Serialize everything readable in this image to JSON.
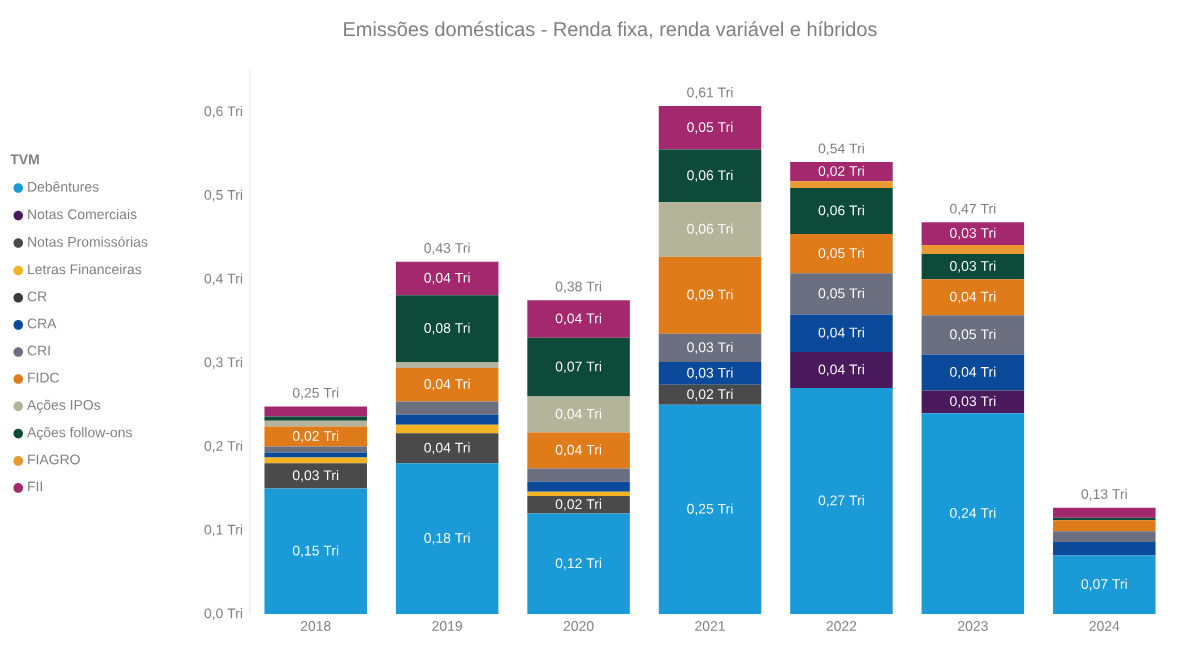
{
  "chart_data": {
    "type": "bar",
    "stacked": true,
    "title": "Emissões domésticas - Renda fixa, renda variável e híbridos",
    "legend_title": "TVM",
    "legend": "left",
    "categories": [
      "2018",
      "2019",
      "2020",
      "2021",
      "2022",
      "2023",
      "2024"
    ],
    "ylim": [
      0,
      0.65
    ],
    "yticks": [
      {
        "value": 0,
        "label": "0,0 Tri"
      },
      {
        "value": 0.1,
        "label": "0,1 Tri"
      },
      {
        "value": 0.2,
        "label": "0,2 Tri"
      },
      {
        "value": 0.3,
        "label": "0,3 Tri"
      },
      {
        "value": 0.4,
        "label": "0,4 Tri"
      },
      {
        "value": 0.5,
        "label": "0,5 Tri"
      },
      {
        "value": 0.6,
        "label": "0,6 Tri"
      }
    ],
    "totals": [
      "0,25 Tri",
      "0,43 Tri",
      "0,38 Tri",
      "0,61 Tri",
      "0,54 Tri",
      "0,47 Tri",
      "0,13 Tri"
    ],
    "series": [
      {
        "name": "Debêntures",
        "color": "#1a9ad6",
        "values": [
          0.15,
          0.18,
          0.12,
          0.25,
          0.27,
          0.24,
          0.07
        ],
        "value_labels": [
          "0,15 Tri",
          "0,18 Tri",
          "0,12 Tri",
          "0,25 Tri",
          "0,27 Tri",
          "0,24 Tri",
          "0,07 Tri"
        ]
      },
      {
        "name": "Notas Comerciais",
        "color": "#4b1a5c",
        "values": [
          0,
          0,
          0,
          0,
          0.043,
          0.027,
          0
        ],
        "value_labels": [
          null,
          null,
          null,
          null,
          "0,04 Tri",
          "0,03 Tri",
          null
        ]
      },
      {
        "name": "Notas Promissórias",
        "color": "#4a4a4a",
        "values": [
          0.03,
          0.036,
          0.021,
          0.024,
          0,
          0,
          0
        ],
        "value_labels": [
          "0,03 Tri",
          "0,04 Tri",
          "0,02 Tri",
          "0,02 Tri",
          null,
          null,
          null
        ]
      },
      {
        "name": "Letras Financeiras",
        "color": "#f0b323",
        "values": [
          0.007,
          0.01,
          0.005,
          0,
          0,
          0,
          0
        ]
      },
      {
        "name": "CR",
        "color": "#3a3a3a",
        "values": [
          0,
          0,
          0,
          0,
          0,
          0,
          0
        ]
      },
      {
        "name": "CRA",
        "color": "#0b4a9a",
        "values": [
          0.006,
          0.012,
          0.012,
          0.027,
          0.045,
          0.043,
          0.016
        ],
        "value_labels": [
          null,
          null,
          null,
          "0,03 Tri",
          "0,04 Tri",
          "0,04 Tri",
          null
        ]
      },
      {
        "name": "CRI",
        "color": "#6b6f80",
        "values": [
          0.007,
          0.016,
          0.016,
          0.034,
          0.049,
          0.047,
          0.013
        ],
        "value_labels": [
          null,
          null,
          null,
          "0,03 Tri",
          "0,05 Tri",
          "0,05 Tri",
          null
        ]
      },
      {
        "name": "FIDC",
        "color": "#e07b1a",
        "values": [
          0.024,
          0.04,
          0.043,
          0.092,
          0.047,
          0.043,
          0.013
        ],
        "value_labels": [
          "0,02 Tri",
          "0,04 Tri",
          "0,04 Tri",
          "0,09 Tri",
          "0,05 Tri",
          "0,04 Tri",
          null
        ]
      },
      {
        "name": "Ações IPOs",
        "color": "#b4b49a",
        "values": [
          0.007,
          0.007,
          0.043,
          0.065,
          0,
          0,
          0
        ],
        "value_labels": [
          null,
          null,
          "0,04 Tri",
          "0,06 Tri",
          null,
          null,
          null
        ]
      },
      {
        "name": "Ações follow-ons",
        "color": "#0d4a3a",
        "values": [
          0.005,
          0.08,
          0.07,
          0.063,
          0.055,
          0.03,
          0.003
        ],
        "value_labels": [
          null,
          "0,08 Tri",
          "0,07 Tri",
          "0,06 Tri",
          "0,06 Tri",
          "0,03 Tri",
          null
        ]
      },
      {
        "name": "FIAGRO",
        "color": "#e89a30",
        "values": [
          0,
          0,
          0,
          0,
          0.008,
          0.011,
          0
        ]
      },
      {
        "name": "FII",
        "color": "#a3286e",
        "values": [
          0.012,
          0.04,
          0.045,
          0.052,
          0.023,
          0.027,
          0.012
        ],
        "value_labels": [
          null,
          "0,04 Tri",
          "0,04 Tri",
          "0,05 Tri",
          "0,02 Tri",
          "0,03 Tri",
          null
        ]
      }
    ]
  }
}
